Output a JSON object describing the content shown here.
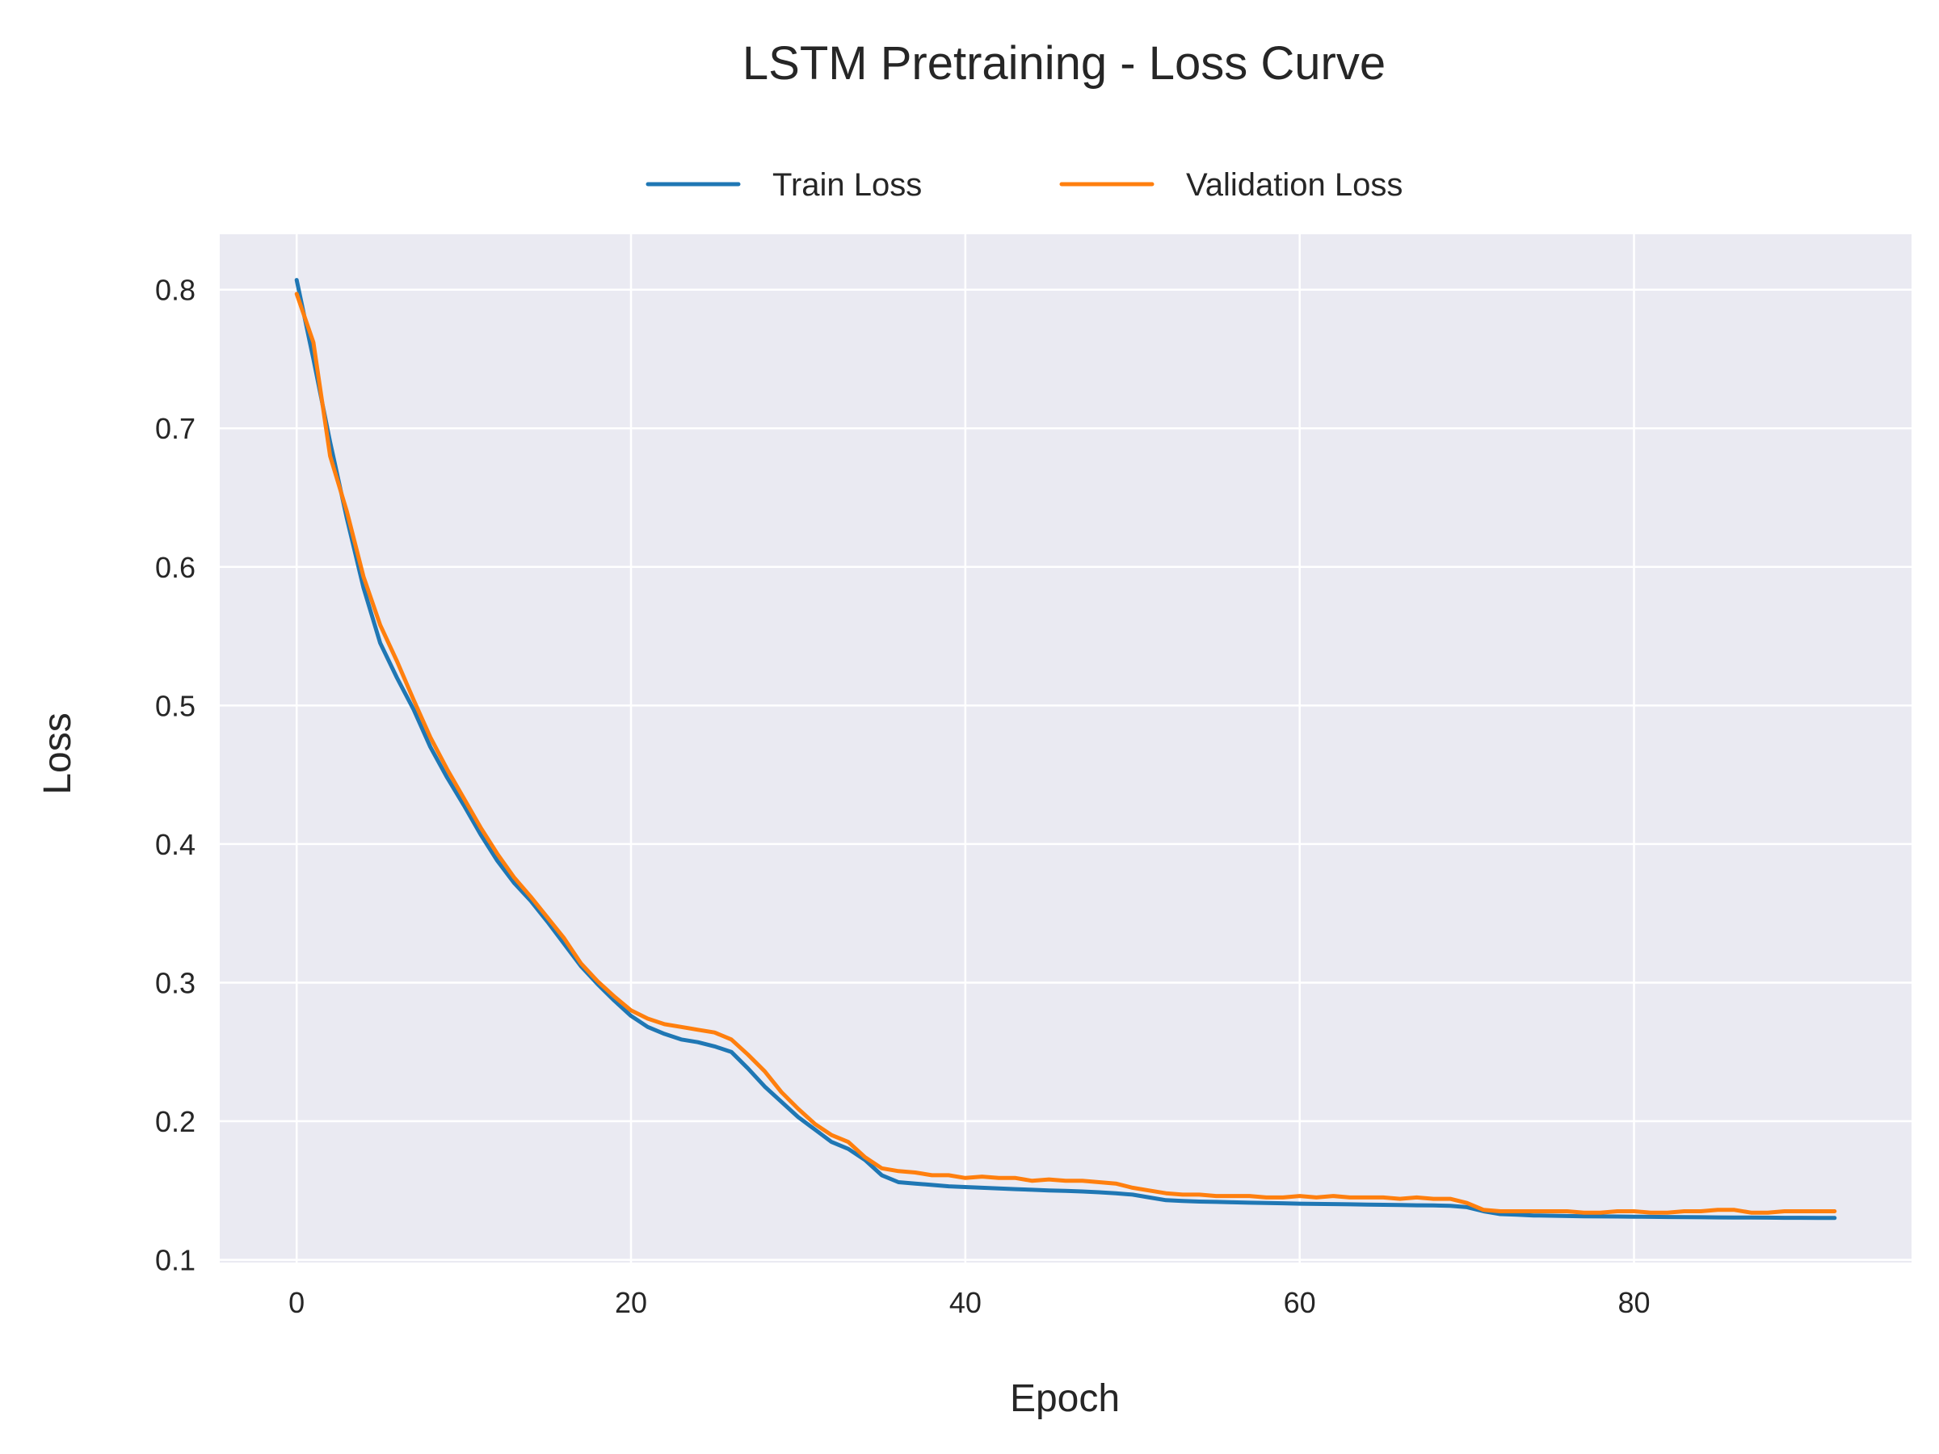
{
  "chart_data": {
    "type": "line",
    "title": "LSTM Pretraining - Loss Curve",
    "xlabel": "Epoch",
    "ylabel": "Loss",
    "xlim": [
      -4.6,
      96.6
    ],
    "ylim": [
      0.098,
      0.84
    ],
    "xticks": [
      0,
      20,
      40,
      60,
      80
    ],
    "yticks": [
      0.1,
      0.2,
      0.3,
      0.4,
      0.5,
      0.6,
      0.7,
      0.8
    ],
    "xtick_labels": [
      "0",
      "20",
      "40",
      "60",
      "80"
    ],
    "ytick_labels": [
      "0.1",
      "0.2",
      "0.3",
      "0.4",
      "0.5",
      "0.6",
      "0.7",
      "0.8"
    ],
    "grid": true,
    "legend_position": "top-center",
    "background_color": "#eaeaf2",
    "x": [
      0,
      1,
      2,
      3,
      4,
      5,
      6,
      7,
      8,
      9,
      10,
      11,
      12,
      13,
      14,
      15,
      16,
      17,
      18,
      19,
      20,
      21,
      22,
      23,
      24,
      25,
      26,
      27,
      28,
      29,
      30,
      31,
      32,
      33,
      34,
      35,
      36,
      37,
      38,
      39,
      40,
      41,
      42,
      43,
      44,
      45,
      46,
      47,
      48,
      49,
      50,
      51,
      52,
      53,
      54,
      55,
      56,
      57,
      58,
      59,
      60,
      61,
      62,
      63,
      64,
      65,
      66,
      67,
      68,
      69,
      70,
      71,
      72,
      73,
      74,
      75,
      76,
      77,
      78,
      79,
      80,
      81,
      82,
      83,
      84,
      85,
      86,
      87,
      88,
      89,
      90,
      91,
      92
    ],
    "series": [
      {
        "name": "Train Loss",
        "color": "#1f77b4",
        "values": [
          0.807,
          0.75,
          0.69,
          0.635,
          0.585,
          0.545,
          0.52,
          0.497,
          0.47,
          0.448,
          0.428,
          0.407,
          0.388,
          0.372,
          0.359,
          0.344,
          0.328,
          0.312,
          0.299,
          0.287,
          0.276,
          0.268,
          0.263,
          0.259,
          0.257,
          0.254,
          0.25,
          0.238,
          0.225,
          0.214,
          0.203,
          0.194,
          0.185,
          0.18,
          0.172,
          0.161,
          0.156,
          0.155,
          0.154,
          0.153,
          0.1525,
          0.152,
          0.1515,
          0.151,
          0.1505,
          0.15,
          0.1497,
          0.1493,
          0.1487,
          0.148,
          0.147,
          0.145,
          0.143,
          0.1425,
          0.142,
          0.1418,
          0.1415,
          0.1412,
          0.141,
          0.1408,
          0.1405,
          0.1403,
          0.1402,
          0.14,
          0.1398,
          0.1397,
          0.1395,
          0.1393,
          0.1392,
          0.139,
          0.138,
          0.135,
          0.133,
          0.1325,
          0.132,
          0.1318,
          0.1316,
          0.1314,
          0.1313,
          0.1312,
          0.1311,
          0.131,
          0.1309,
          0.1308,
          0.1307,
          0.1306,
          0.1305,
          0.1305,
          0.1304,
          0.1303,
          0.1303,
          0.1302,
          0.1302
        ]
      },
      {
        "name": "Validation Loss",
        "color": "#ff7f0e",
        "values": [
          0.797,
          0.762,
          0.68,
          0.64,
          0.593,
          0.558,
          0.532,
          0.504,
          0.477,
          0.454,
          0.433,
          0.412,
          0.393,
          0.376,
          0.362,
          0.347,
          0.332,
          0.314,
          0.301,
          0.29,
          0.28,
          0.274,
          0.27,
          0.268,
          0.266,
          0.264,
          0.259,
          0.248,
          0.236,
          0.221,
          0.209,
          0.198,
          0.19,
          0.185,
          0.174,
          0.166,
          0.164,
          0.163,
          0.161,
          0.161,
          0.159,
          0.16,
          0.159,
          0.159,
          0.157,
          0.158,
          0.157,
          0.157,
          0.156,
          0.155,
          0.152,
          0.15,
          0.148,
          0.147,
          0.147,
          0.146,
          0.146,
          0.146,
          0.145,
          0.145,
          0.146,
          0.145,
          0.146,
          0.145,
          0.145,
          0.145,
          0.144,
          0.145,
          0.144,
          0.144,
          0.141,
          0.136,
          0.135,
          0.135,
          0.135,
          0.135,
          0.135,
          0.134,
          0.134,
          0.135,
          0.135,
          0.134,
          0.134,
          0.135,
          0.135,
          0.136,
          0.136,
          0.134,
          0.134,
          0.135,
          0.135,
          0.135,
          0.135
        ]
      }
    ]
  }
}
